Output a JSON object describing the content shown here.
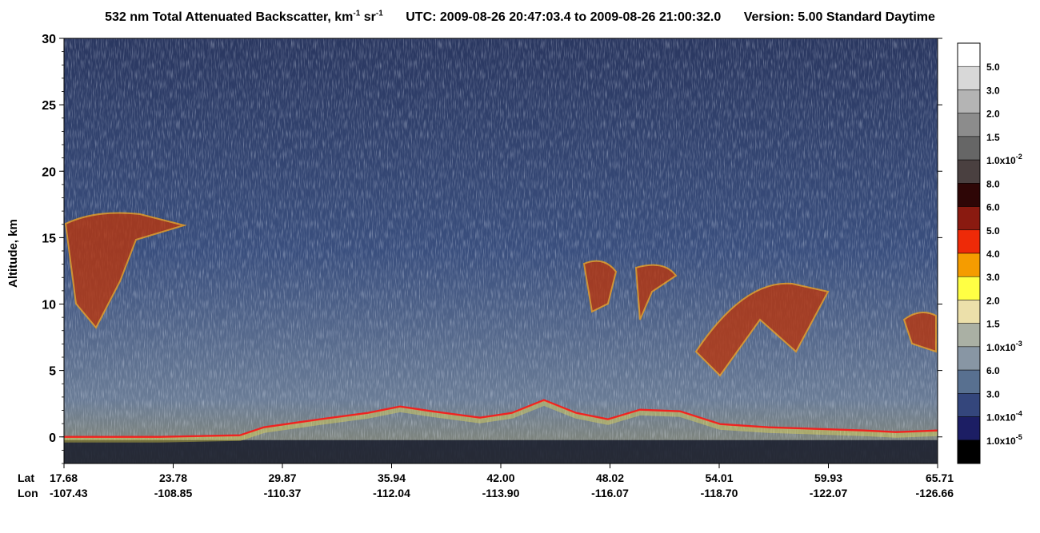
{
  "title": {
    "product": "532 nm Total Attenuated Backscatter, km",
    "unit_sup1": "-1",
    "unit_mid": " sr",
    "unit_sup2": "-1",
    "utc": "UTC:  2009-08-26 20:47:03.4  to  2009-08-26 21:00:32.0",
    "version": "Version: 5.00  Standard  Daytime"
  },
  "axes": {
    "ylabel": "Altitude, km",
    "lat_label": "Lat",
    "lon_label": "Lon"
  },
  "chart_data": {
    "type": "heatmap",
    "yticks": [
      "30",
      "25",
      "20",
      "15",
      "10",
      "5",
      "0"
    ],
    "ylim": [
      -2,
      30
    ],
    "x_ticks": [
      {
        "lat": "17.68",
        "lon": "-107.43"
      },
      {
        "lat": "23.78",
        "lon": "-108.85"
      },
      {
        "lat": "29.87",
        "lon": "-110.37"
      },
      {
        "lat": "35.94",
        "lon": "-112.04"
      },
      {
        "lat": "42.00",
        "lon": "-113.90"
      },
      {
        "lat": "48.02",
        "lon": "-116.07"
      },
      {
        "lat": "54.01",
        "lon": "-118.70"
      },
      {
        "lat": "59.93",
        "lon": "-122.07"
      },
      {
        "lat": "65.71",
        "lon": "-126.66"
      }
    ],
    "colorbar": [
      {
        "label": "5.0",
        "color": "#ffffff"
      },
      {
        "label": "3.0",
        "color": "#d8d8d8"
      },
      {
        "label": "2.0",
        "color": "#b4b4b4"
      },
      {
        "label": "1.5",
        "color": "#8c8c8c"
      },
      {
        "label": "1.0x10",
        "sup": "-2",
        "color": "#666666"
      },
      {
        "label": "8.0",
        "color": "#4a4040"
      },
      {
        "label": "6.0",
        "color": "#2e0606"
      },
      {
        "label": "5.0",
        "color": "#8a1a10"
      },
      {
        "label": "4.0",
        "color": "#ee2a08"
      },
      {
        "label": "3.0",
        "color": "#f59c00"
      },
      {
        "label": "2.0",
        "color": "#ffff44"
      },
      {
        "label": "1.5",
        "color": "#ece0aa"
      },
      {
        "label": "1.0x10",
        "sup": "-3",
        "color": "#aab0a4"
      },
      {
        "label": "6.0",
        "color": "#8896a4"
      },
      {
        "label": "3.0",
        "color": "#587090"
      },
      {
        "label": "1.0x10",
        "sup": "-4",
        "color": "#34467c"
      },
      {
        "label": "1.0x10",
        "sup": "-5",
        "color": "#1c1e64"
      },
      {
        "label": "",
        "color": "#000000"
      }
    ]
  }
}
